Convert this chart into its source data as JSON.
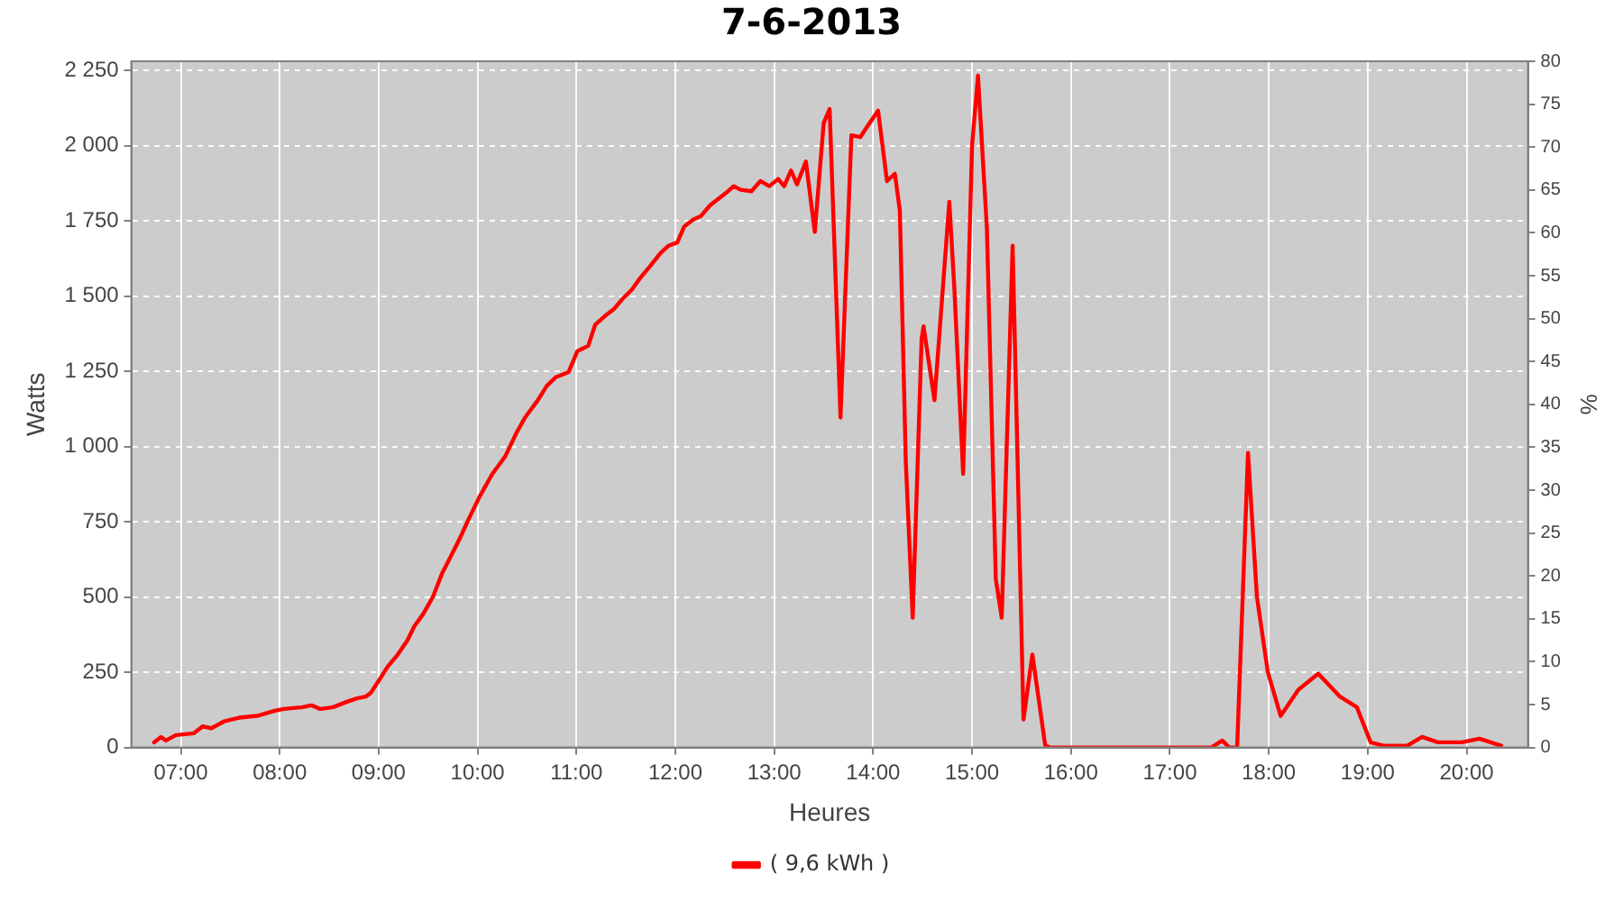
{
  "chart_data": {
    "type": "line",
    "title": "7-6-2013",
    "xlabel": "Heures",
    "ylabel": "Watts",
    "y2label": "%",
    "xlim": [
      6.5,
      20.62
    ],
    "xticks": [
      {
        "value": 7,
        "label": "07:00"
      },
      {
        "value": 8,
        "label": "08:00"
      },
      {
        "value": 9,
        "label": "09:00"
      },
      {
        "value": 10,
        "label": "10:00"
      },
      {
        "value": 11,
        "label": "11:00"
      },
      {
        "value": 12,
        "label": "12:00"
      },
      {
        "value": 13,
        "label": "13:00"
      },
      {
        "value": 14,
        "label": "14:00"
      },
      {
        "value": 15,
        "label": "15:00"
      },
      {
        "value": 16,
        "label": "16:00"
      },
      {
        "value": 17,
        "label": "17:00"
      },
      {
        "value": 18,
        "label": "18:00"
      },
      {
        "value": 19,
        "label": "19:00"
      },
      {
        "value": 20,
        "label": "20:00"
      }
    ],
    "ylim": [
      0,
      2280
    ],
    "yticks": [
      0,
      250,
      500,
      750,
      {
        "value": 1000,
        "label": "1 000"
      },
      {
        "value": 1250,
        "label": "1 250"
      },
      {
        "value": 1500,
        "label": "1 500"
      },
      {
        "value": 1750,
        "label": "1 750"
      },
      {
        "value": 2000,
        "label": "2 000"
      },
      {
        "value": 2250,
        "label": "2 250"
      }
    ],
    "y2lim": [
      0,
      80
    ],
    "y2ticks": [
      0,
      5,
      10,
      15,
      20,
      25,
      30,
      35,
      40,
      45,
      50,
      55,
      60,
      65,
      70,
      75,
      80
    ],
    "grid": true,
    "legend": "bottom",
    "marker": "none",
    "line_style": "solid",
    "series": [
      {
        "name": "( 9,6 kWh )",
        "color": "#ff0000",
        "x": [
          6.73,
          6.8,
          6.85,
          6.95,
          7.13,
          7.22,
          7.31,
          7.44,
          7.59,
          7.77,
          7.95,
          8.04,
          8.23,
          8.32,
          8.41,
          8.54,
          8.68,
          8.78,
          8.87,
          8.92,
          9.0,
          9.09,
          9.18,
          9.29,
          9.36,
          9.45,
          9.55,
          9.64,
          9.73,
          9.82,
          9.91,
          10.02,
          10.15,
          10.28,
          10.39,
          10.48,
          10.61,
          10.7,
          10.79,
          10.92,
          11.01,
          11.12,
          11.19,
          11.29,
          11.38,
          11.47,
          11.56,
          11.65,
          11.74,
          11.85,
          11.93,
          12.02,
          12.09,
          12.18,
          12.26,
          12.35,
          12.44,
          12.51,
          12.59,
          12.66,
          12.77,
          12.86,
          12.95,
          13.04,
          13.1,
          13.17,
          13.23,
          13.32,
          13.41,
          13.5,
          13.56,
          13.67,
          13.78,
          13.87,
          13.94,
          14.05,
          14.14,
          14.22,
          14.27,
          14.33,
          14.4,
          14.49,
          14.51,
          14.62,
          14.77,
          14.82,
          14.91,
          15.0,
          15.06,
          15.15,
          15.24,
          15.3,
          15.41,
          15.42,
          15.52,
          15.61,
          15.74,
          15.79,
          16.5,
          17.42,
          17.53,
          17.6,
          17.68,
          17.79,
          17.88,
          17.99,
          18.12,
          18.3,
          18.5,
          18.72,
          18.89,
          19.03,
          19.16,
          19.4,
          19.55,
          19.71,
          19.95,
          20.13,
          20.35
        ],
        "values": [
          17,
          35,
          23,
          41,
          47,
          70,
          64,
          87,
          99,
          105,
          122,
          128,
          134,
          140,
          128,
          134,
          152,
          163,
          169,
          181,
          221,
          268,
          303,
          355,
          402,
          443,
          501,
          577,
          635,
          694,
          758,
          833,
          909,
          967,
          1043,
          1096,
          1154,
          1201,
          1230,
          1247,
          1317,
          1335,
          1405,
          1434,
          1457,
          1492,
          1521,
          1562,
          1597,
          1643,
          1667,
          1678,
          1731,
          1754,
          1766,
          1801,
          1824,
          1842,
          1865,
          1853,
          1848,
          1882,
          1865,
          1889,
          1865,
          1917,
          1871,
          1947,
          1713,
          2075,
          2121,
          1096,
          2034,
          2028,
          2063,
          2116,
          1882,
          1906,
          1783,
          950,
          431,
          1358,
          1399,
          1154,
          1813,
          1533,
          909,
          1999,
          2232,
          1725,
          560,
          431,
          1667,
          1533,
          93,
          309,
          6,
          0,
          0,
          0,
          23,
          0,
          0,
          979,
          501,
          251,
          105,
          192,
          245,
          169,
          134,
          17,
          6,
          6,
          35,
          17,
          17,
          29,
          6
        ]
      }
    ]
  }
}
